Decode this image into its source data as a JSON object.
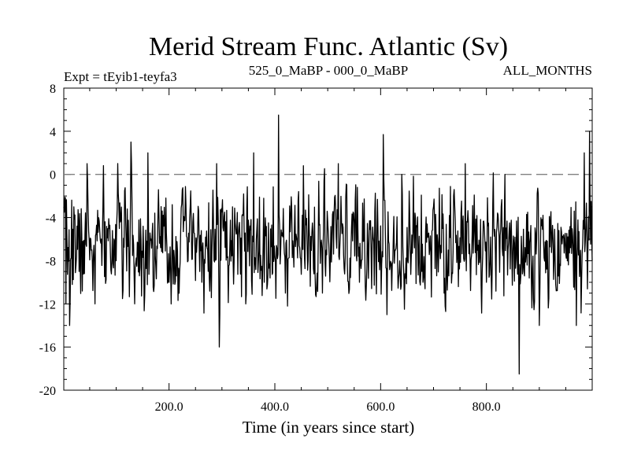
{
  "chart_data": {
    "type": "line",
    "title": "Merid Stream Func. Atlantic (Sv)",
    "subtitle_left": "Expt = tEyib1-teyfa3",
    "subtitle_center": "525_0_MaBP - 000_0_MaBP",
    "subtitle_right": "ALL_MONTHS",
    "xlabel": "Time (in years since start)",
    "ylabel": "",
    "xlim": [
      1,
      1000
    ],
    "ylim": [
      -20,
      8
    ],
    "xticks": [
      200,
      400,
      600,
      800
    ],
    "xtick_labels": [
      "200.0",
      "400.0",
      "600.0",
      "800.0"
    ],
    "yticks": [
      8,
      4,
      0,
      -4,
      -8,
      -12,
      -16,
      -20
    ],
    "ytick_labels": [
      "8",
      "4",
      "0",
      "-4",
      "-8",
      "-12",
      "-16",
      "-20"
    ],
    "reference_line": {
      "y": 0,
      "style": "dashed",
      "color": "#808080"
    },
    "series": [
      {
        "name": "Merid Stream Func. Atlantic",
        "color": "#000000",
        "n_points": 1000,
        "mean": -6.5,
        "noise_sd": 2.4,
        "seed": 7,
        "values_sparse": [
          {
            "x": 5,
            "y": -12
          },
          {
            "x": 12,
            "y": -14
          },
          {
            "x": 20,
            "y": -3
          },
          {
            "x": 30,
            "y": -9
          },
          {
            "x": 45,
            "y": 1
          },
          {
            "x": 60,
            "y": -12
          },
          {
            "x": 75,
            "y": -3
          },
          {
            "x": 100,
            "y": -8
          },
          {
            "x": 128,
            "y": 3
          },
          {
            "x": 135,
            "y": -12
          },
          {
            "x": 160,
            "y": 2
          },
          {
            "x": 200,
            "y": -10
          },
          {
            "x": 240,
            "y": -3
          },
          {
            "x": 262,
            "y": -10
          },
          {
            "x": 290,
            "y": 1
          },
          {
            "x": 295,
            "y": -16
          },
          {
            "x": 320,
            "y": -3
          },
          {
            "x": 345,
            "y": -12
          },
          {
            "x": 360,
            "y": 2
          },
          {
            "x": 380,
            "y": -10
          },
          {
            "x": 407,
            "y": 5.5
          },
          {
            "x": 420,
            "y": -11
          },
          {
            "x": 455,
            "y": -4
          },
          {
            "x": 490,
            "y": -11
          },
          {
            "x": 520,
            "y": 1
          },
          {
            "x": 560,
            "y": -10
          },
          {
            "x": 605,
            "y": 3.7
          },
          {
            "x": 612,
            "y": -13
          },
          {
            "x": 640,
            "y": 0
          },
          {
            "x": 680,
            "y": -10
          },
          {
            "x": 700,
            "y": -3
          },
          {
            "x": 720,
            "y": -11
          },
          {
            "x": 760,
            "y": 1
          },
          {
            "x": 800,
            "y": -10
          },
          {
            "x": 835,
            "y": 0
          },
          {
            "x": 862,
            "y": -18.5
          },
          {
            "x": 900,
            "y": -14
          },
          {
            "x": 930,
            "y": -8
          },
          {
            "x": 970,
            "y": -14
          },
          {
            "x": 985,
            "y": 2
          },
          {
            "x": 995,
            "y": 4
          },
          {
            "x": 1000,
            "y": -8
          }
        ]
      }
    ]
  }
}
